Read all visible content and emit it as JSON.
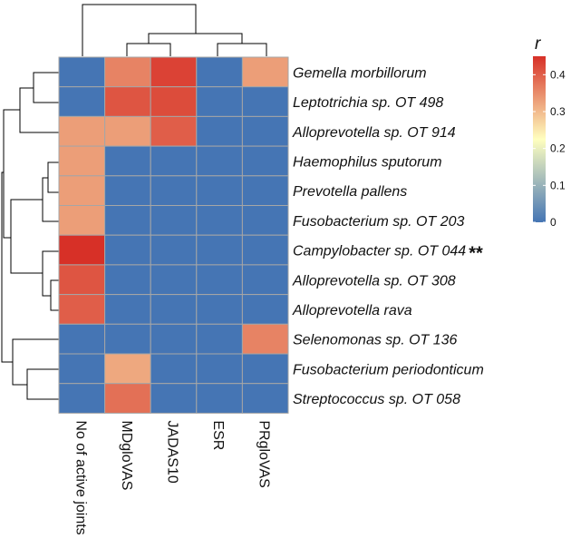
{
  "chart_data": {
    "type": "heatmap",
    "legend": {
      "title": "r",
      "ticks": [
        0,
        0.1,
        0.2,
        0.3,
        0.4
      ],
      "range": [
        0,
        0.45
      ]
    },
    "columns": [
      "No of active joints",
      "MDgloVAS",
      "JADAS10",
      "ESR",
      "PRgloVAS"
    ],
    "rows": [
      {
        "label": "Gemella morbillorum",
        "values": [
          0,
          0.36,
          0.43,
          0,
          0.33
        ]
      },
      {
        "label": "Leptotrichia sp. OT 498",
        "values": [
          0,
          0.41,
          0.42,
          0,
          0
        ]
      },
      {
        "label": "Alloprevotella sp. OT 914",
        "values": [
          0.33,
          0.33,
          0.4,
          0,
          0
        ]
      },
      {
        "label": "Haemophilus sputorum",
        "values": [
          0.33,
          0,
          0,
          0,
          0
        ]
      },
      {
        "label": "Prevotella pallens",
        "values": [
          0.33,
          0,
          0,
          0,
          0
        ]
      },
      {
        "label": "Fusobacterium sp. OT 203",
        "values": [
          0.33,
          0,
          0,
          0,
          0
        ]
      },
      {
        "label": "Campylobacter sp. OT 044",
        "values": [
          0.45,
          0,
          0,
          0,
          0
        ],
        "annotation": "**"
      },
      {
        "label": "Alloprevotella sp. OT 308",
        "values": [
          0.41,
          0,
          0,
          0,
          0
        ]
      },
      {
        "label": "Alloprevotella rava",
        "values": [
          0.4,
          0,
          0,
          0,
          0
        ]
      },
      {
        "label": "Selenomonas sp. OT 136",
        "values": [
          0,
          0,
          0,
          0,
          0.36
        ]
      },
      {
        "label": "Fusobacterium periodonticum",
        "values": [
          0,
          0.32,
          0,
          0,
          0
        ]
      },
      {
        "label": "Streptococcus sp. OT 058",
        "values": [
          0,
          0.38,
          0,
          0,
          0
        ]
      }
    ],
    "colors": {
      "low": "#4575b4",
      "mid": "#ffffbf",
      "high": "#d73027"
    }
  }
}
